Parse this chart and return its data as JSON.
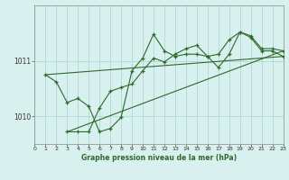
{
  "background_color": "#d8f0ee",
  "grid_color": "#b0d8d4",
  "line_color": "#2d6a2d",
  "xlabel": "Graphe pression niveau de la mer (hPa)",
  "xlim": [
    0,
    23
  ],
  "ylim": [
    1009.5,
    1012.0
  ],
  "yticks": [
    1010,
    1011
  ],
  "xticks": [
    0,
    1,
    2,
    3,
    4,
    5,
    6,
    7,
    8,
    9,
    10,
    11,
    12,
    13,
    14,
    15,
    16,
    17,
    18,
    19,
    20,
    21,
    22,
    23
  ],
  "series1": {
    "x": [
      1,
      2,
      3,
      4,
      5,
      6,
      7,
      8,
      9,
      10,
      11,
      12,
      13,
      14,
      15,
      16,
      17,
      18,
      19,
      20,
      21,
      22,
      23
    ],
    "y": [
      1010.75,
      1010.62,
      1010.25,
      1010.32,
      1010.18,
      1009.72,
      1009.78,
      1009.98,
      1010.82,
      1011.05,
      1011.48,
      1011.18,
      1011.08,
      1011.12,
      1011.12,
      1011.08,
      1010.88,
      1011.12,
      1011.52,
      1011.42,
      1011.18,
      1011.18,
      1011.08
    ]
  },
  "series2": {
    "x": [
      3,
      4,
      5,
      6,
      7,
      8,
      9,
      10,
      11,
      12,
      13,
      14,
      15,
      16,
      17,
      18,
      19,
      20,
      21,
      22,
      23
    ],
    "y": [
      1009.72,
      1009.72,
      1009.72,
      1010.15,
      1010.45,
      1010.52,
      1010.58,
      1010.82,
      1011.05,
      1010.98,
      1011.12,
      1011.22,
      1011.28,
      1011.08,
      1011.12,
      1011.38,
      1011.52,
      1011.45,
      1011.22,
      1011.22,
      1011.18
    ]
  },
  "trend1": {
    "x": [
      1,
      23
    ],
    "y": [
      1010.75,
      1011.08
    ]
  },
  "trend2": {
    "x": [
      3,
      23
    ],
    "y": [
      1009.72,
      1011.18
    ]
  }
}
